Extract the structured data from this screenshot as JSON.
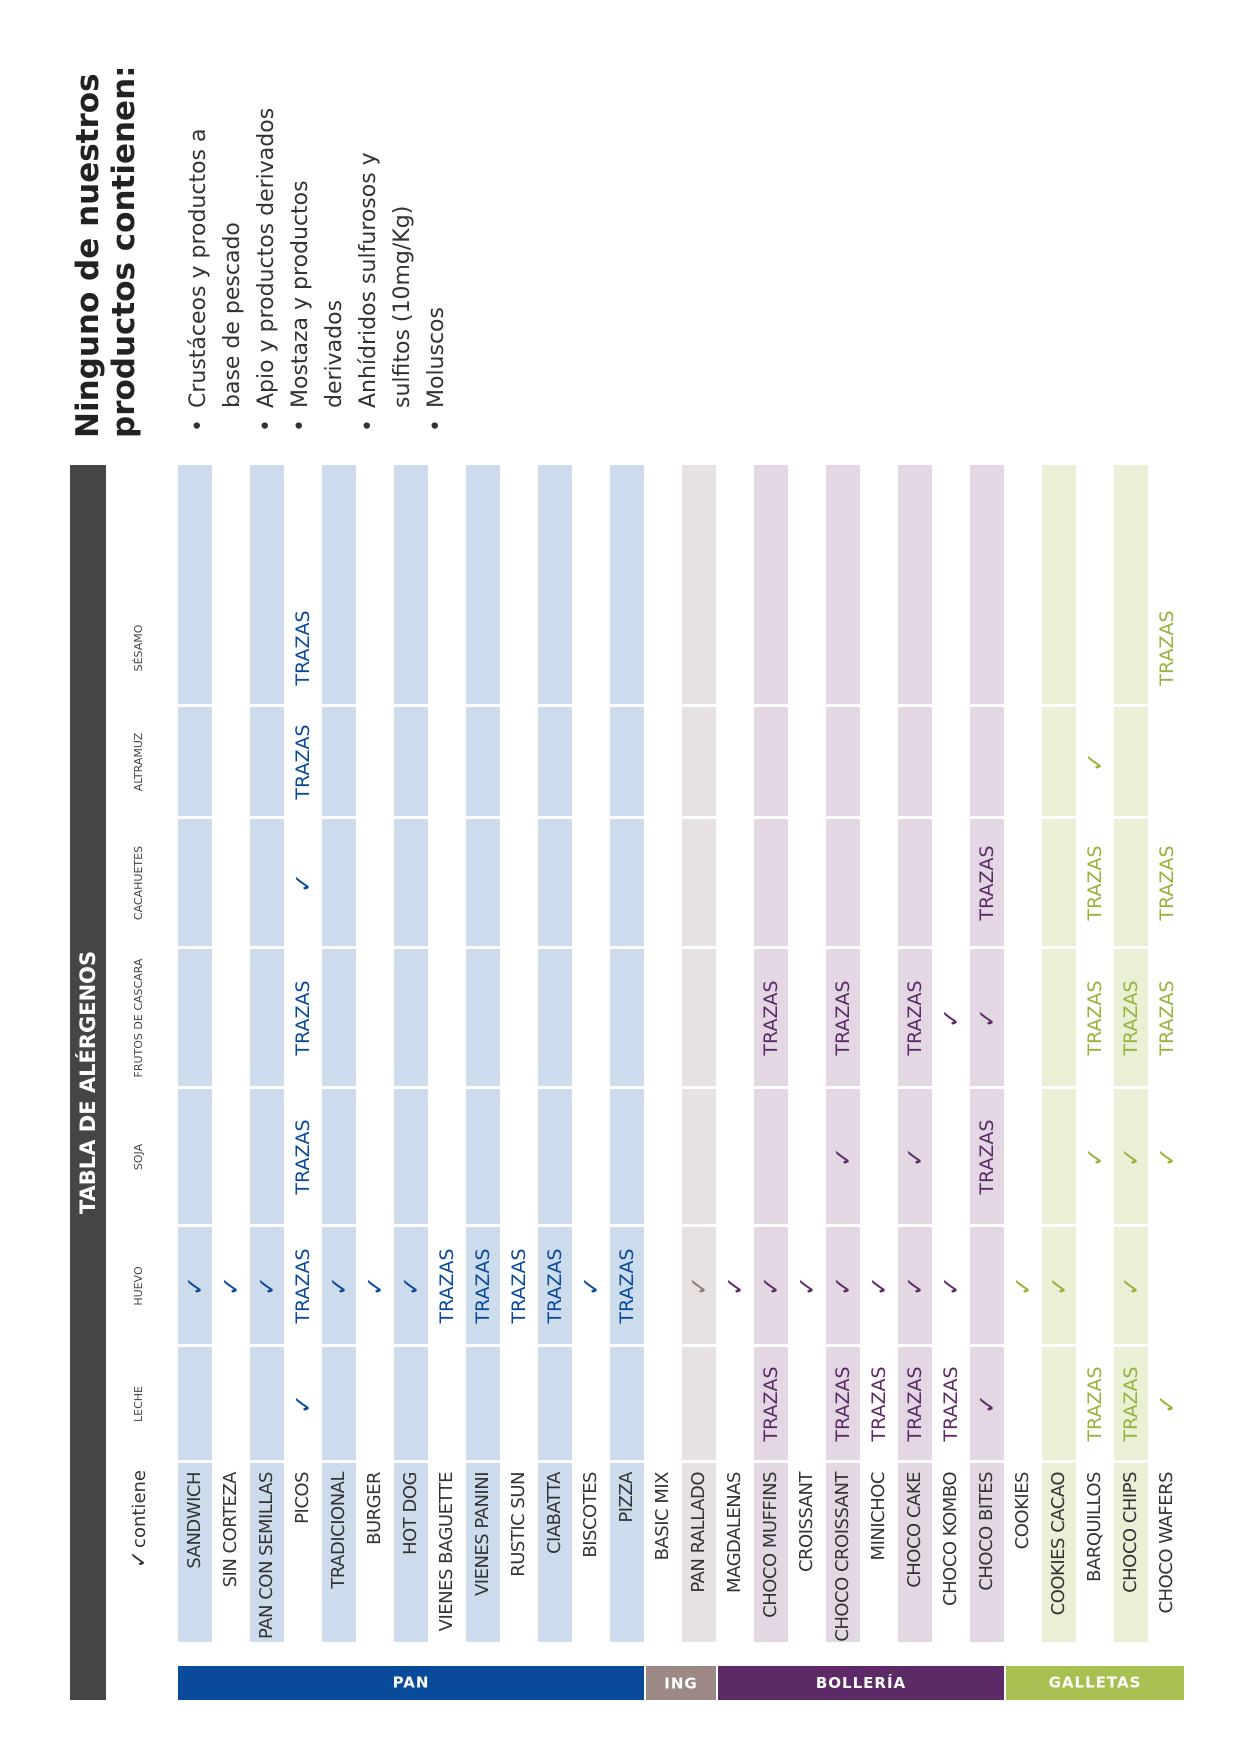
{
  "title": "TABLA DE ALÉRGENOS",
  "legend": {
    "mark": "✓",
    "label": "contiene"
  },
  "columns": [
    "LECHE",
    "HUEVO",
    "SOJA",
    "FRUTOS DE CASCARA",
    "CACAHUETES",
    "ALTRAMUZ",
    "SÉSAMO"
  ],
  "check_mark": "✓",
  "trazas_label": "TRAZAS",
  "groups": [
    {
      "name": "PAN",
      "color": "#0a4a9a",
      "band": "#cddcec",
      "text": "#0a4a9a"
    },
    {
      "name": "ING",
      "color": "#9c8884",
      "band": "#e7e2e1",
      "text": "#8c7c78"
    },
    {
      "name": "BOLLERÍA",
      "color": "#5d2a68",
      "band": "#e3d7e4",
      "text": "#5d2a68"
    },
    {
      "name": "GALLETAS",
      "color": "#a8c052",
      "band": "#eaf0d6",
      "text": "#97b33b"
    }
  ],
  "rows": [
    {
      "name": "SANDWICH",
      "group": 0,
      "banded": true,
      "cells": [
        "",
        "✓",
        "",
        "",
        "",
        "",
        ""
      ]
    },
    {
      "name": "SIN CORTEZA",
      "group": 0,
      "banded": false,
      "cells": [
        "",
        "✓",
        "",
        "",
        "",
        "",
        ""
      ]
    },
    {
      "name": "PAN CON SEMILLAS",
      "group": 0,
      "banded": true,
      "cells": [
        "",
        "✓",
        "",
        "",
        "",
        "",
        ""
      ]
    },
    {
      "name": "PICOS",
      "group": 0,
      "banded": false,
      "cells": [
        "✓",
        "TRAZAS",
        "TRAZAS",
        "TRAZAS",
        "✓",
        "TRAZAS",
        "TRAZAS"
      ]
    },
    {
      "name": "TRADICIONAL",
      "group": 0,
      "banded": true,
      "cells": [
        "",
        "✓",
        "",
        "",
        "",
        "",
        ""
      ]
    },
    {
      "name": "BURGER",
      "group": 0,
      "banded": false,
      "cells": [
        "",
        "✓",
        "",
        "",
        "",
        "",
        ""
      ]
    },
    {
      "name": "HOT DOG",
      "group": 0,
      "banded": true,
      "cells": [
        "",
        "✓",
        "",
        "",
        "",
        "",
        ""
      ]
    },
    {
      "name": "VIENES BAGUETTE",
      "group": 0,
      "banded": false,
      "cells": [
        "",
        "TRAZAS",
        "",
        "",
        "",
        "",
        ""
      ]
    },
    {
      "name": "VIENES PANINI",
      "group": 0,
      "banded": true,
      "cells": [
        "",
        "TRAZAS",
        "",
        "",
        "",
        "",
        ""
      ]
    },
    {
      "name": "RUSTIC SUN",
      "group": 0,
      "banded": false,
      "cells": [
        "",
        "TRAZAS",
        "",
        "",
        "",
        "",
        ""
      ]
    },
    {
      "name": "CIABATTA",
      "group": 0,
      "banded": true,
      "cells": [
        "",
        "TRAZAS",
        "",
        "",
        "",
        "",
        ""
      ]
    },
    {
      "name": "BISCOTES",
      "group": 0,
      "banded": false,
      "cells": [
        "",
        "✓",
        "",
        "",
        "",
        "",
        ""
      ]
    },
    {
      "name": "PIZZA",
      "group": 0,
      "banded": true,
      "cells": [
        "",
        "TRAZAS",
        "",
        "",
        "",
        "",
        ""
      ]
    },
    {
      "name": "BASIC MIX",
      "group": 1,
      "banded": false,
      "cells": [
        "",
        "",
        "",
        "",
        "",
        "",
        ""
      ]
    },
    {
      "name": "PAN RALLADO",
      "group": 1,
      "banded": true,
      "cells": [
        "",
        "✓",
        "",
        "",
        "",
        "",
        ""
      ]
    },
    {
      "name": "MAGDALENAS",
      "group": 2,
      "banded": false,
      "cells": [
        "",
        "✓",
        "",
        "",
        "",
        "",
        ""
      ]
    },
    {
      "name": "CHOCO MUFFINS",
      "group": 2,
      "banded": true,
      "cells": [
        "TRAZAS",
        "✓",
        "",
        "TRAZAS",
        "",
        "",
        ""
      ]
    },
    {
      "name": "CROISSANT",
      "group": 2,
      "banded": false,
      "cells": [
        "",
        "✓",
        "",
        "",
        "",
        "",
        ""
      ]
    },
    {
      "name": "CHOCO CROISSANT",
      "group": 2,
      "banded": true,
      "cells": [
        "TRAZAS",
        "✓",
        "✓",
        "TRAZAS",
        "",
        "",
        ""
      ]
    },
    {
      "name": "MINICHOC",
      "group": 2,
      "banded": false,
      "cells": [
        "TRAZAS",
        "✓",
        "",
        "",
        "",
        "",
        ""
      ]
    },
    {
      "name": "CHOCO CAKE",
      "group": 2,
      "banded": true,
      "cells": [
        "TRAZAS",
        "✓",
        "✓",
        "TRAZAS",
        "",
        "",
        ""
      ]
    },
    {
      "name": "CHOCO KOMBO",
      "group": 2,
      "banded": false,
      "cells": [
        "TRAZAS",
        "✓",
        "",
        "✓",
        "",
        "",
        ""
      ]
    },
    {
      "name": "CHOCO BITES",
      "group": 2,
      "banded": true,
      "cells": [
        "✓",
        "",
        "TRAZAS",
        "✓",
        "TRAZAS",
        "",
        ""
      ]
    },
    {
      "name": "COOKIES",
      "group": 3,
      "banded": false,
      "cells": [
        "",
        "✓",
        "",
        "",
        "",
        "",
        ""
      ]
    },
    {
      "name": "COOKIES CACAO",
      "group": 3,
      "banded": true,
      "cells": [
        "",
        "✓",
        "",
        "",
        "",
        "",
        ""
      ]
    },
    {
      "name": "BARQUILLOS",
      "group": 3,
      "banded": false,
      "cells": [
        "TRAZAS",
        "",
        "✓",
        "TRAZAS",
        "TRAZAS",
        "✓",
        ""
      ]
    },
    {
      "name": "CHOCO CHIPS",
      "group": 3,
      "banded": true,
      "cells": [
        "TRAZAS",
        "✓",
        "✓",
        "TRAZAS",
        "",
        "",
        ""
      ]
    },
    {
      "name": "CHOCO WAFERS",
      "group": 3,
      "banded": false,
      "cells": [
        "✓",
        "",
        "✓",
        "TRAZAS",
        "TRAZAS",
        "",
        "TRAZAS"
      ]
    }
  ],
  "notes": {
    "title_line1": "Ninguno de nuestros",
    "title_line2": "productos contienen:",
    "items": [
      [
        "Crustáceos y productos a",
        "base de pescado"
      ],
      [
        "Apio y productos derivados"
      ],
      [
        "Mostaza y productos",
        "derivados"
      ],
      [
        "Anhídridos sulfurosos y",
        "sulfitos (10mg/Kg)"
      ],
      [
        "Moluscos"
      ]
    ]
  }
}
